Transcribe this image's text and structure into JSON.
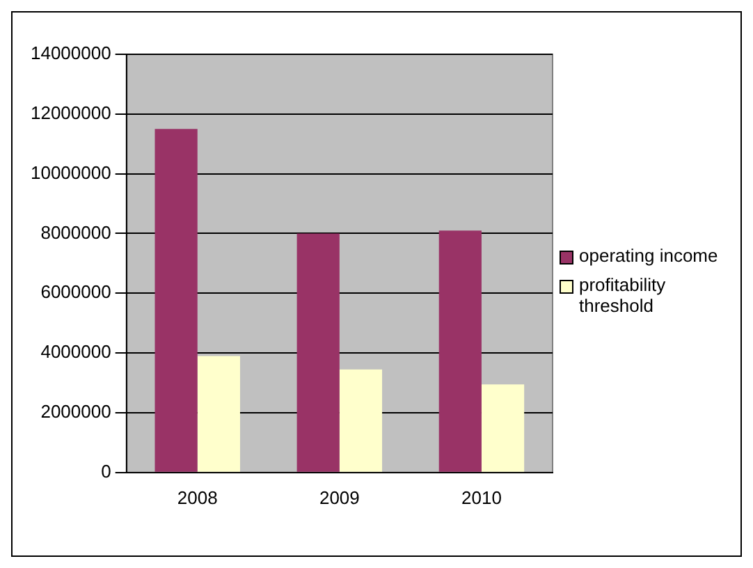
{
  "chart_data": {
    "type": "bar",
    "categories": [
      "2008",
      "2009",
      "2010"
    ],
    "series": [
      {
        "name": "operating income",
        "color": "#993366",
        "values": [
          11500000,
          8000000,
          8100000
        ]
      },
      {
        "name": "profitability threshold",
        "color": "#ffffcc",
        "values": [
          3900000,
          3450000,
          2950000
        ]
      }
    ],
    "ylim": [
      0,
      14000000
    ],
    "yticks": [
      0,
      2000000,
      4000000,
      6000000,
      8000000,
      10000000,
      12000000,
      14000000
    ],
    "grid": "y",
    "legend": "right"
  }
}
